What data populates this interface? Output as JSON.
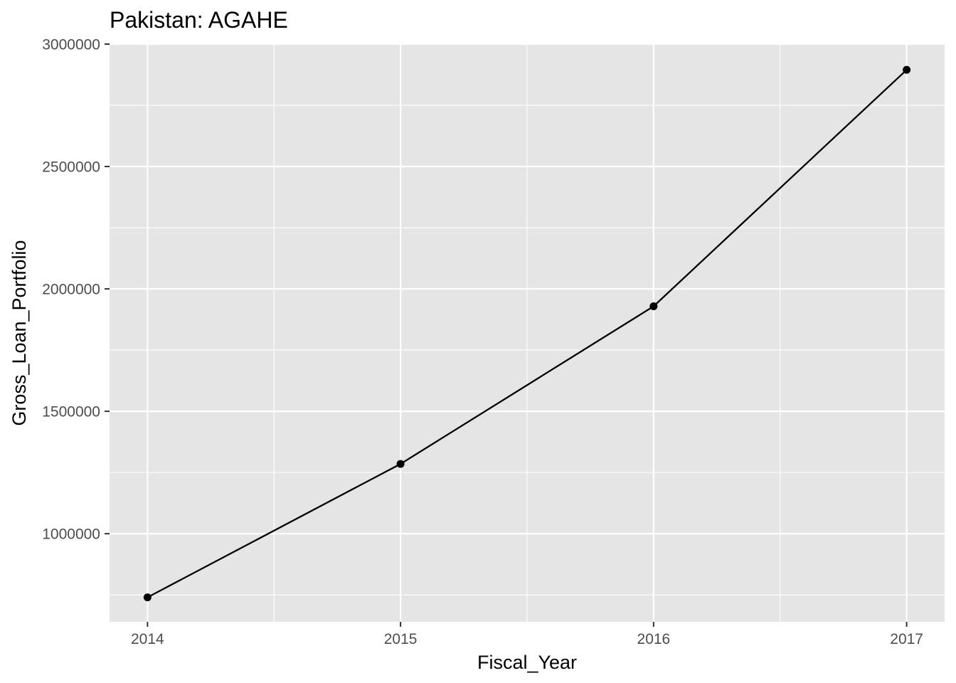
{
  "chart_data": {
    "type": "line",
    "title": "Pakistan:  AGAHE",
    "xlabel": "Fiscal_Year",
    "ylabel": "Gross_Loan_Portfolio",
    "x": [
      2014,
      2015,
      2016,
      2017
    ],
    "series": [
      {
        "values": [
          740000,
          1285000,
          1929000,
          2895000
        ]
      }
    ],
    "xlim": [
      2013.85,
      2017.15
    ],
    "ylim": [
      640000,
      3000000
    ],
    "x_ticks": [
      "2014",
      "2015",
      "2016",
      "2017"
    ],
    "y_ticks": [
      "1000000",
      "1500000",
      "2000000",
      "2500000",
      "3000000"
    ],
    "grid": true,
    "legend": "none",
    "colors": {
      "panel": "#e5e5e5",
      "grid": "#ffffff",
      "line": "#000000",
      "tick_text": "#4d4d4d"
    }
  }
}
